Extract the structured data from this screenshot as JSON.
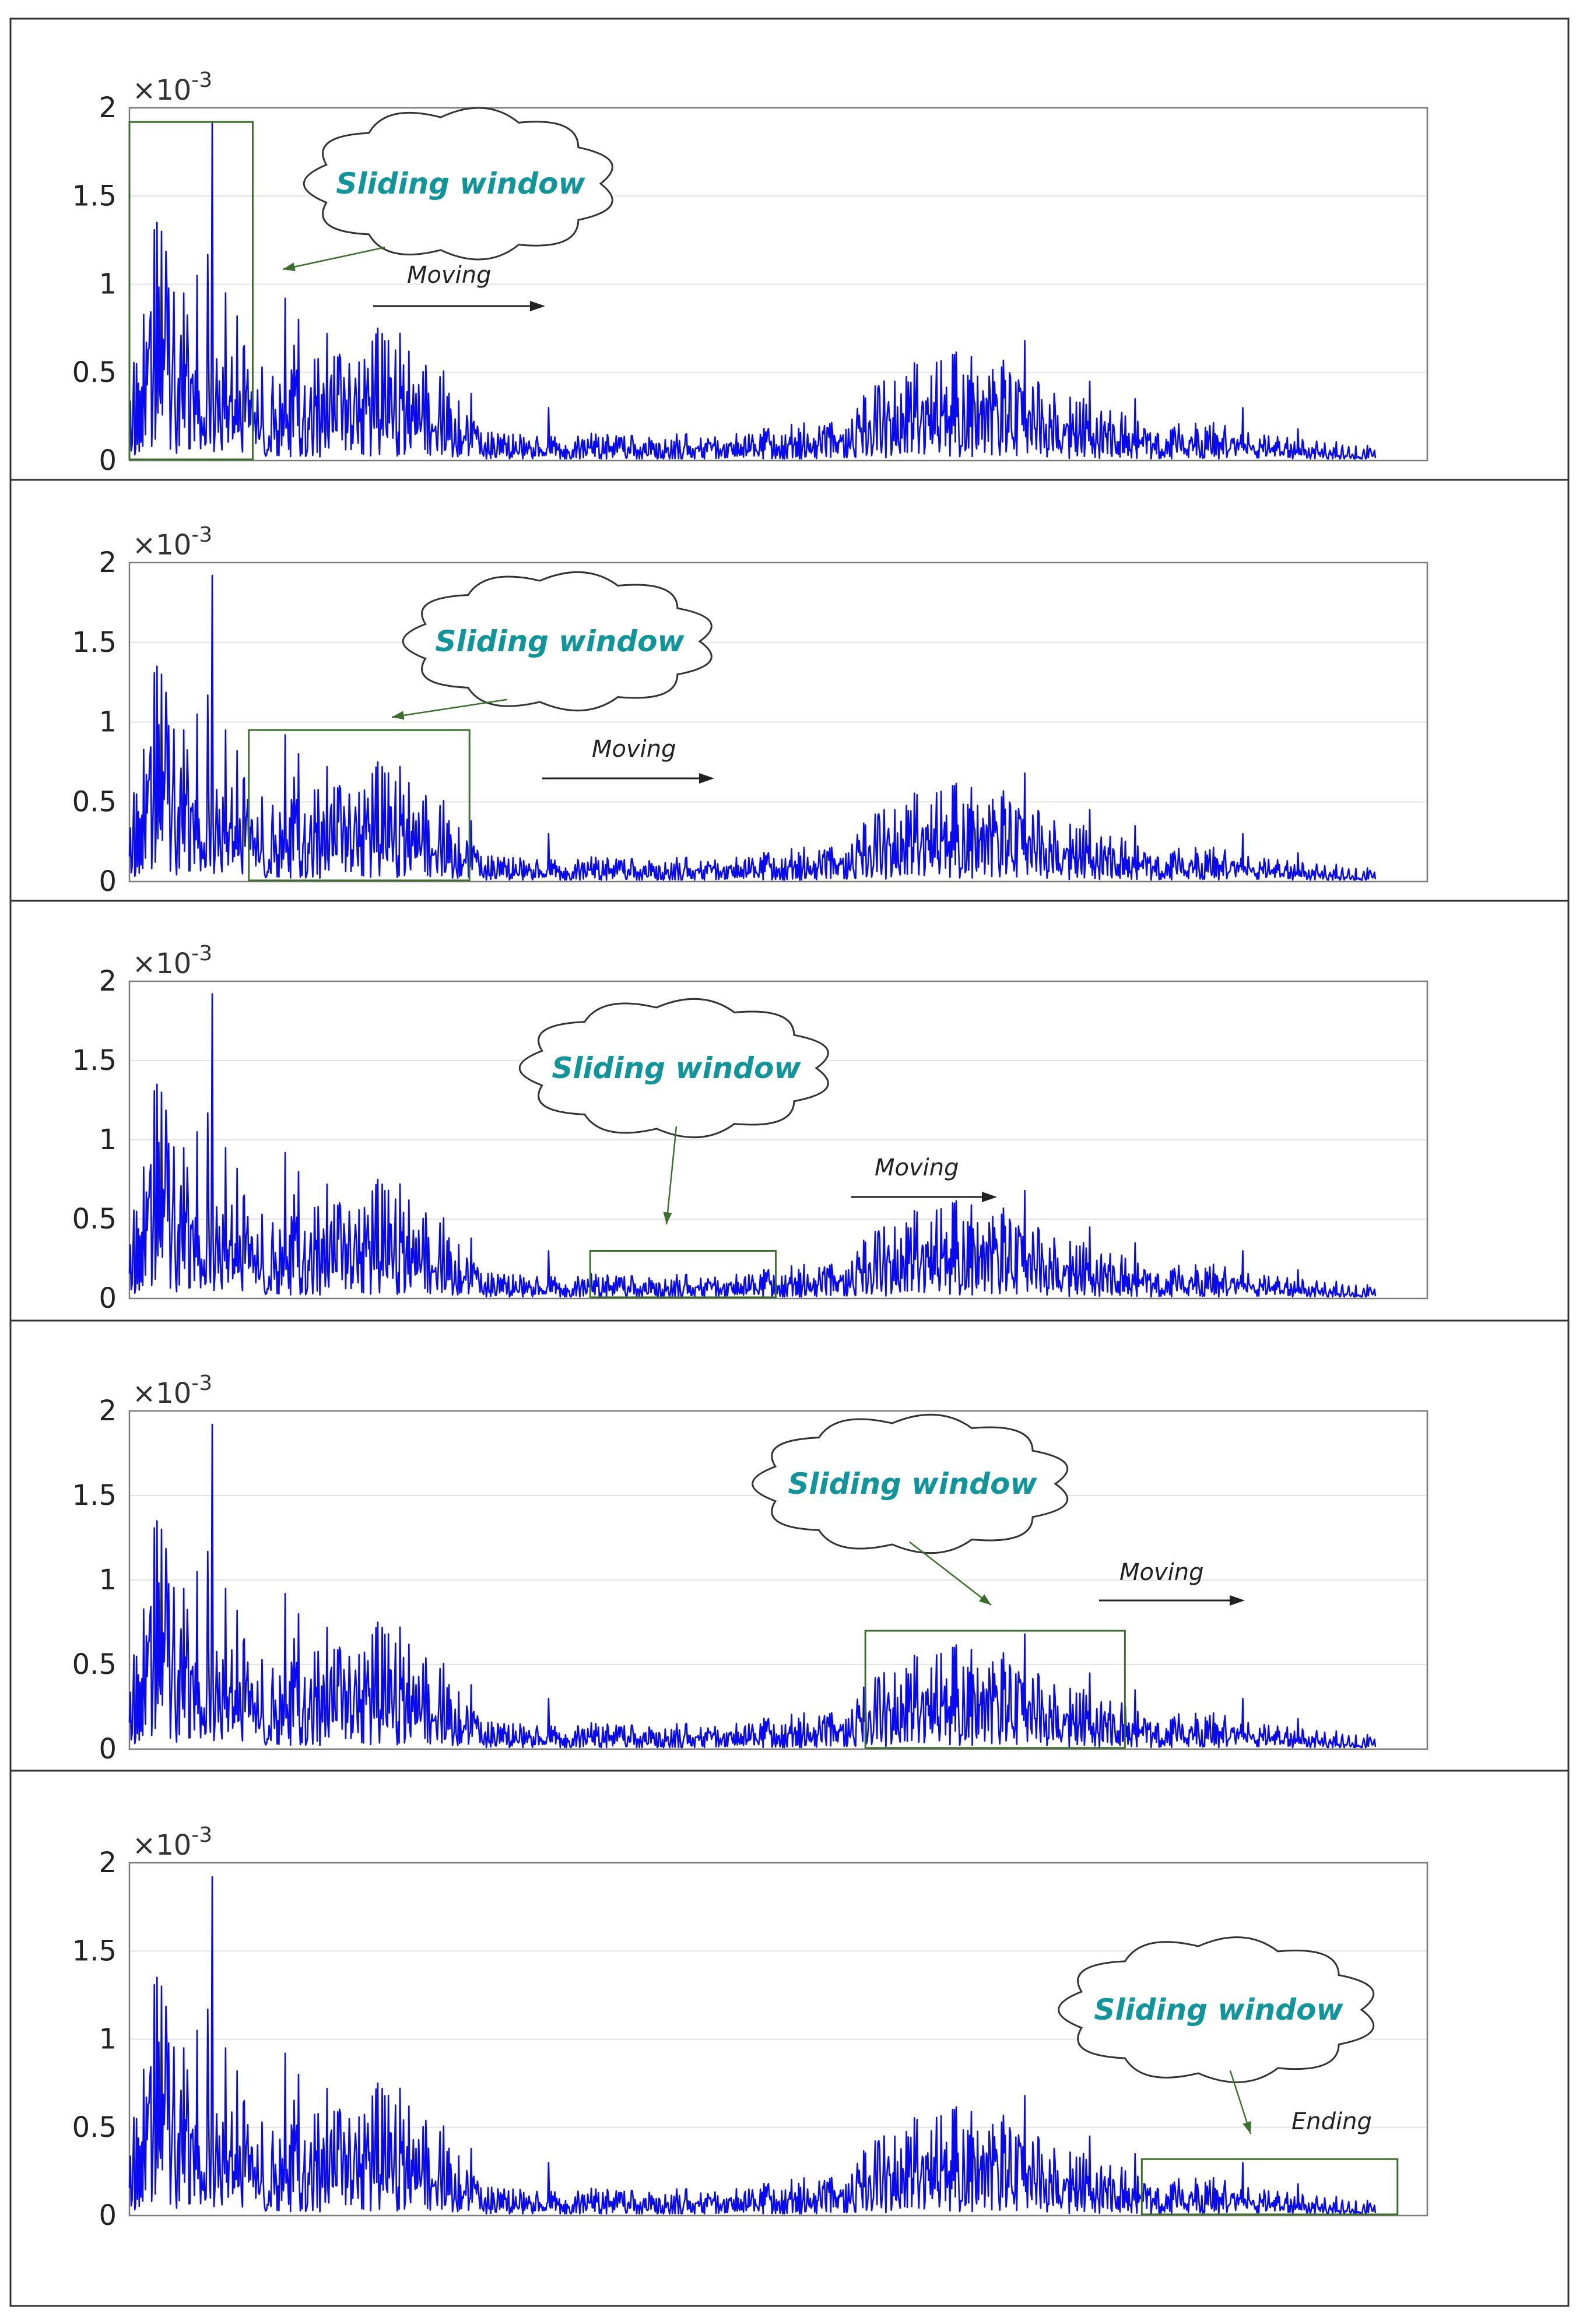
{
  "chart_data": [
    {
      "type": "line",
      "y_axis": {
        "ylim": [
          0,
          2
        ],
        "ticks": [
          "0",
          "0.5",
          "1",
          "1.5",
          "2"
        ],
        "multiplier_base": "×10",
        "multiplier_exponent": "-3"
      },
      "grid": "horizontal",
      "series_color": "#0a0af0",
      "window_color": "#3c6e2d",
      "window": {
        "x_range": [
          0,
          0.095
        ],
        "height": 1.92
      },
      "annotation": {
        "cloud_text": "Sliding window",
        "arrow_text": "Moving"
      }
    },
    {
      "type": "line",
      "y_axis": {
        "ylim": [
          0,
          2
        ],
        "ticks": [
          "0",
          "0.5",
          "1",
          "1.5",
          "2"
        ],
        "multiplier_base": "×10",
        "multiplier_exponent": "-3"
      },
      "grid": "horizontal",
      "series_color": "#0a0af0",
      "window_color": "#3c6e2d",
      "window": {
        "x_range": [
          0.092,
          0.262
        ],
        "height": 0.95
      },
      "annotation": {
        "cloud_text": "Sliding window",
        "arrow_text": "Moving"
      }
    },
    {
      "type": "line",
      "y_axis": {
        "ylim": [
          0,
          2
        ],
        "ticks": [
          "0",
          "0.5",
          "1",
          "1.5",
          "2"
        ],
        "multiplier_base": "×10",
        "multiplier_exponent": "-3"
      },
      "grid": "horizontal",
      "series_color": "#0a0af0",
      "window_color": "#3c6e2d",
      "window": {
        "x_range": [
          0.355,
          0.498
        ],
        "height": 0.3
      },
      "annotation": {
        "cloud_text": "Sliding window",
        "arrow_text": "Moving"
      }
    },
    {
      "type": "line",
      "y_axis": {
        "ylim": [
          0,
          2
        ],
        "ticks": [
          "0",
          "0.5",
          "1",
          "1.5",
          "2"
        ],
        "multiplier_base": "×10",
        "multiplier_exponent": "-3"
      },
      "grid": "horizontal",
      "series_color": "#0a0af0",
      "window_color": "#3c6e2d",
      "window": {
        "x_range": [
          0.567,
          0.767
        ],
        "height": 0.7
      },
      "annotation": {
        "cloud_text": "Sliding window",
        "arrow_text": "Moving"
      }
    },
    {
      "type": "line",
      "y_axis": {
        "ylim": [
          0,
          2
        ],
        "ticks": [
          "0",
          "0.5",
          "1",
          "1.5",
          "2"
        ],
        "multiplier_base": "×10",
        "multiplier_exponent": "-3"
      },
      "grid": "horizontal",
      "series_color": "#0a0af0",
      "window_color": "#3c6e2d",
      "window": {
        "x_range": [
          0.78,
          0.977
        ],
        "height": 0.32
      },
      "annotation": {
        "cloud_text": "Sliding window",
        "arrow_text": "Ending"
      }
    }
  ],
  "signal": {
    "description_points": [
      [
        0.0,
        0.32
      ],
      [
        0.01,
        0.55
      ],
      [
        0.022,
        0.95
      ],
      [
        0.03,
        0.8
      ],
      [
        0.038,
        0.6
      ],
      [
        0.05,
        0.55
      ],
      [
        0.06,
        0.75
      ],
      [
        0.07,
        0.55
      ],
      [
        0.08,
        0.45
      ],
      [
        0.095,
        0.4
      ],
      [
        0.12,
        0.45
      ],
      [
        0.15,
        0.38
      ],
      [
        0.17,
        0.4
      ],
      [
        0.19,
        0.5
      ],
      [
        0.21,
        0.45
      ],
      [
        0.24,
        0.35
      ],
      [
        0.262,
        0.15
      ],
      [
        0.3,
        0.1
      ],
      [
        0.35,
        0.1
      ],
      [
        0.4,
        0.09
      ],
      [
        0.45,
        0.1
      ],
      [
        0.5,
        0.12
      ],
      [
        0.54,
        0.16
      ],
      [
        0.57,
        0.25
      ],
      [
        0.6,
        0.35
      ],
      [
        0.63,
        0.38
      ],
      [
        0.66,
        0.4
      ],
      [
        0.69,
        0.3
      ],
      [
        0.72,
        0.25
      ],
      [
        0.76,
        0.18
      ],
      [
        0.8,
        0.15
      ],
      [
        0.84,
        0.14
      ],
      [
        0.86,
        0.1
      ],
      [
        0.9,
        0.08
      ],
      [
        0.96,
        0.06
      ]
    ],
    "spikes": [
      [
        0.021,
        1.35
      ],
      [
        0.025,
        1.3
      ],
      [
        0.042,
        0.95
      ],
      [
        0.052,
        1.05
      ],
      [
        0.064,
        1.92
      ],
      [
        0.074,
        0.95
      ],
      [
        0.083,
        0.82
      ],
      [
        0.12,
        0.92
      ],
      [
        0.13,
        0.8
      ],
      [
        0.152,
        0.72
      ],
      [
        0.191,
        0.75
      ],
      [
        0.195,
        0.72
      ],
      [
        0.215,
        0.62
      ],
      [
        0.263,
        0.38
      ],
      [
        0.323,
        0.3
      ],
      [
        0.59,
        0.45
      ],
      [
        0.618,
        0.48
      ],
      [
        0.672,
        0.53
      ],
      [
        0.69,
        0.68
      ],
      [
        0.74,
        0.45
      ],
      [
        0.775,
        0.35
      ],
      [
        0.858,
        0.3
      ],
      [
        0.9,
        0.18
      ]
    ],
    "x_extent": [
      0,
      0.96
    ],
    "seed": 20240517
  }
}
